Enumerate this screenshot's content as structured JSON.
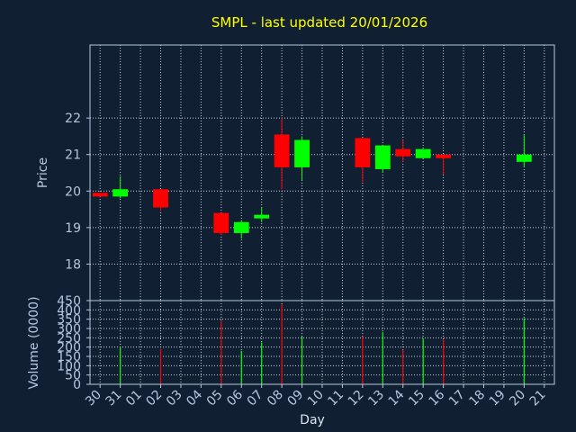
{
  "chart_data": [
    {
      "type": "candlestick",
      "title": "SMPL - last updated 20/01/2026",
      "ylabel": "Price",
      "ylim": [
        17,
        24
      ],
      "yticks": [
        18,
        19,
        20,
        21,
        22
      ],
      "grid": true,
      "up_color": "#00ff00",
      "down_color": "#ff0000",
      "categories": [
        "30",
        "31",
        "01",
        "02",
        "03",
        "04",
        "05",
        "06",
        "07",
        "08",
        "09",
        "10",
        "11",
        "12",
        "13",
        "14",
        "15",
        "16",
        "17",
        "18",
        "19",
        "20",
        "21"
      ],
      "candles": [
        {
          "x": "30",
          "open": 19.95,
          "close": 19.85,
          "high": 19.95,
          "low": 19.85
        },
        {
          "x": "31",
          "open": 19.85,
          "close": 20.05,
          "high": 20.4,
          "low": 19.8
        },
        {
          "x": "02",
          "open": 20.05,
          "close": 19.55,
          "high": 20.05,
          "low": 19.45
        },
        {
          "x": "05",
          "open": 19.4,
          "close": 18.85,
          "high": 19.4,
          "low": 18.8
        },
        {
          "x": "06",
          "open": 18.85,
          "close": 19.15,
          "high": 19.2,
          "low": 18.7
        },
        {
          "x": "07",
          "open": 19.25,
          "close": 19.35,
          "high": 19.55,
          "low": 19.15
        },
        {
          "x": "08",
          "open": 21.55,
          "close": 20.65,
          "high": 22.0,
          "low": 20.05
        },
        {
          "x": "09",
          "open": 20.65,
          "close": 21.4,
          "high": 21.5,
          "low": 20.3
        },
        {
          "x": "12",
          "open": 21.45,
          "close": 20.65,
          "high": 21.45,
          "low": 20.25
        },
        {
          "x": "13",
          "open": 20.6,
          "close": 21.25,
          "high": 21.25,
          "low": 20.5
        },
        {
          "x": "14",
          "open": 21.15,
          "close": 20.95,
          "high": 21.4,
          "low": 20.8
        },
        {
          "x": "15",
          "open": 20.9,
          "close": 21.15,
          "high": 21.15,
          "low": 20.9
        },
        {
          "x": "16",
          "open": 21.0,
          "close": 20.9,
          "high": 21.0,
          "low": 20.45
        },
        {
          "x": "20",
          "open": 20.8,
          "close": 21.0,
          "high": 21.55,
          "low": 20.65
        }
      ]
    },
    {
      "type": "bar",
      "ylabel": "Volume (0000)",
      "xlabel": "Day",
      "ylim": [
        0,
        450
      ],
      "yticks": [
        0,
        50,
        100,
        150,
        200,
        250,
        300,
        350,
        400,
        450
      ],
      "grid": true,
      "categories": [
        "30",
        "31",
        "01",
        "02",
        "03",
        "04",
        "05",
        "06",
        "07",
        "08",
        "09",
        "10",
        "11",
        "12",
        "13",
        "14",
        "15",
        "16",
        "17",
        "18",
        "19",
        "20",
        "21"
      ],
      "bars": [
        {
          "x": "31",
          "value": 200,
          "color": "#00ff00"
        },
        {
          "x": "02",
          "value": 190,
          "color": "#ff0000"
        },
        {
          "x": "05",
          "value": 340,
          "color": "#ff0000"
        },
        {
          "x": "06",
          "value": 180,
          "color": "#00ff00"
        },
        {
          "x": "07",
          "value": 225,
          "color": "#00ff00"
        },
        {
          "x": "08",
          "value": 430,
          "color": "#ff0000"
        },
        {
          "x": "09",
          "value": 255,
          "color": "#00ff00"
        },
        {
          "x": "12",
          "value": 255,
          "color": "#ff0000"
        },
        {
          "x": "13",
          "value": 280,
          "color": "#00ff00"
        },
        {
          "x": "14",
          "value": 185,
          "color": "#ff0000"
        },
        {
          "x": "15",
          "value": 245,
          "color": "#00ff00"
        },
        {
          "x": "16",
          "value": 240,
          "color": "#ff0000"
        },
        {
          "x": "20",
          "value": 355,
          "color": "#00ff00"
        }
      ]
    }
  ]
}
